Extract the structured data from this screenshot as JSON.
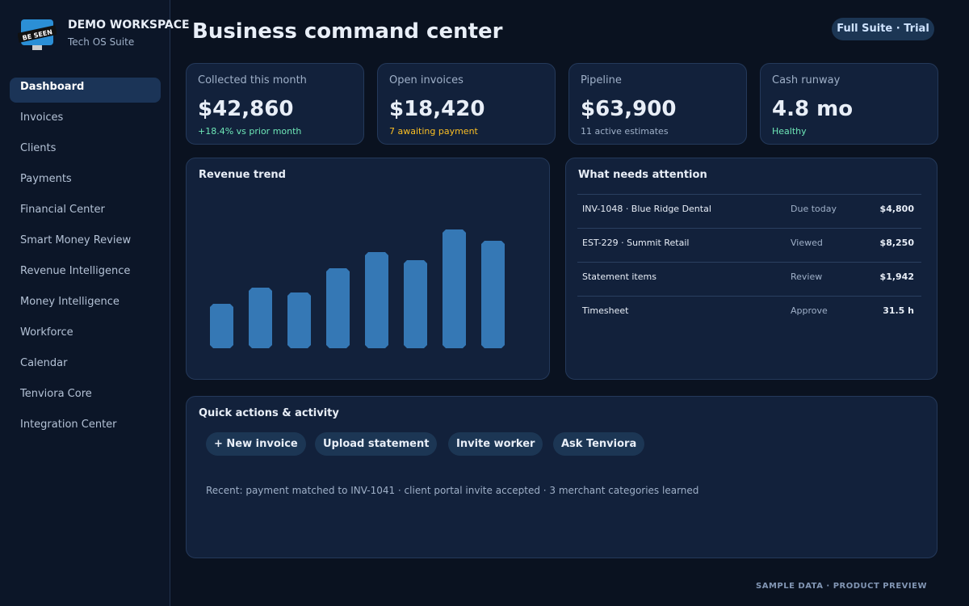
{
  "sidebar": {
    "logo_text": "BE SEEN",
    "workspace": "DEMO WORKSPACE",
    "suite": "Tech OS Suite",
    "nav": [
      "Dashboard",
      "Invoices",
      "Clients",
      "Payments",
      "Financial Center",
      "Smart Money Review",
      "Revenue Intelligence",
      "Money Intelligence",
      "Workforce",
      "Calendar",
      "Tenviora Core",
      "Integration Center"
    ]
  },
  "header": {
    "title": "Business command center",
    "badge": "Full Suite · Trial"
  },
  "kpis": [
    {
      "label": "Collected this month",
      "value": "$42,860",
      "note": "+18.4% vs prior month",
      "note_color": "#6ee7b7"
    },
    {
      "label": "Open invoices",
      "value": "$18,420",
      "note": "7 awaiting payment",
      "note_color": "#fbbf24"
    },
    {
      "label": "Pipeline",
      "value": "$63,900",
      "note": "11 active estimates",
      "note_color": "#9fb0c8"
    },
    {
      "label": "Cash runway",
      "value": "4.8 mo",
      "note": "Healthy",
      "note_color": "#6ee7b7"
    }
  ],
  "chart_data": {
    "type": "bar",
    "title": "Revenue trend",
    "values": [
      55,
      75,
      69,
      99,
      119,
      109,
      147,
      133
    ],
    "color": "#3578b5",
    "ylim": [
      0,
      150
    ]
  },
  "attention": {
    "title": "What needs attention",
    "rows": [
      [
        "INV-1048 · Blue Ridge Dental",
        "Due today",
        "$4,800"
      ],
      [
        "EST-229 · Summit Retail",
        "Viewed",
        "$8,250"
      ],
      [
        "Statement items",
        "Review",
        "$1,942"
      ],
      [
        "Timesheet",
        "Approve",
        "31.5 h"
      ]
    ]
  },
  "quick": {
    "title": "Quick actions & activity",
    "actions": [
      "+ New invoice",
      "Upload statement",
      "Invite worker",
      "Ask Tenviora"
    ],
    "recent": "Recent: payment matched to INV-1041 · client portal invite accepted · 3 merchant categories learned"
  },
  "footer": "SAMPLE DATA · PRODUCT PREVIEW"
}
